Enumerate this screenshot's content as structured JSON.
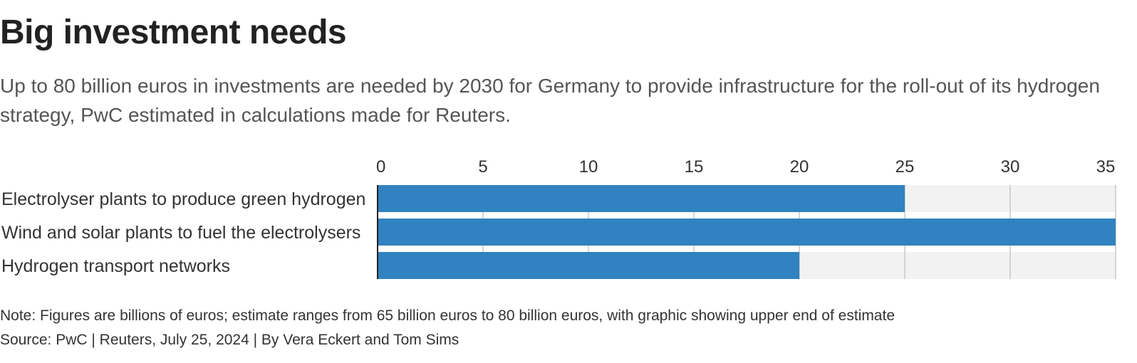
{
  "header": {
    "title": "Big investment needs",
    "subtitle": "Up to 80 billion euros in investments are needed by 2030 for Germany to provide infrastructure for the roll-out of its hydrogen strategy, PwC estimated in calculations made for Reuters."
  },
  "chart_data": {
    "type": "bar",
    "orientation": "horizontal",
    "title": "Big investment needs",
    "categories": [
      "Electrolyser plants to produce green hydrogen",
      "Wind and solar plants to fuel the electrolysers",
      "Hydrogen transport networks"
    ],
    "values": [
      25,
      35,
      20
    ],
    "xlim": [
      0,
      35
    ],
    "ticks": [
      0,
      5,
      10,
      15,
      20,
      25,
      30,
      35
    ],
    "xlabel": "",
    "ylabel": "",
    "grid": true,
    "tick_position": "top",
    "colors": {
      "bar": "#3182c0",
      "track": "#f2f2f2",
      "grid": "#c8c8c8",
      "axis": "#222222"
    }
  },
  "footer": {
    "note": "Note: Figures are billions of euros; estimate ranges from 65 billion euros to 80 billion euros, with graphic showing upper end of estimate",
    "source": "Source: PwC | Reuters, July 25, 2024 | By Vera Eckert and Tom Sims"
  }
}
